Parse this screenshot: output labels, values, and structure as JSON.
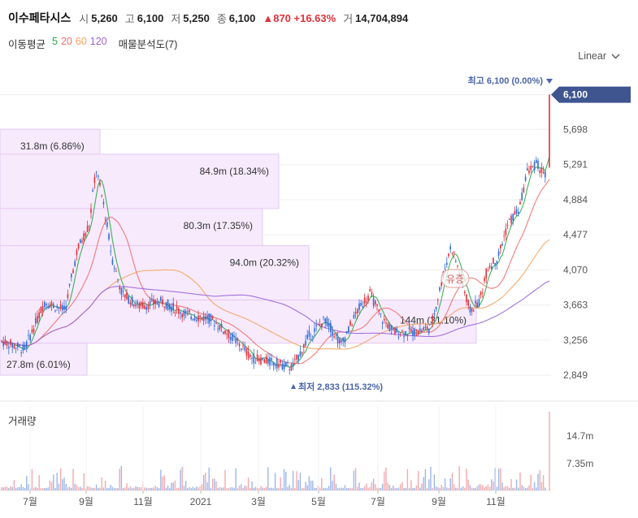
{
  "header": {
    "name": "이수페타시스",
    "open_label": "시",
    "open": "5,260",
    "high_label": "고",
    "high": "6,100",
    "low_label": "저",
    "low": "5,250",
    "close_label": "종",
    "close": "6,100",
    "change": "▲870 +16.63%",
    "volume_label": "거",
    "volume": "14,704,894"
  },
  "legend": {
    "title": "이동평균",
    "ma5": "5",
    "ma20": "20",
    "ma60": "60",
    "ma120": "120",
    "volume_profile": "매물분석도(7)"
  },
  "scale_button": "Linear",
  "volume_title": "거래량",
  "colors": {
    "up": "#e0313a",
    "down": "#2f6bd9",
    "ma5": "#2ba84a",
    "ma20": "#ef6f6c",
    "ma60": "#f5a25b",
    "ma120": "#9a63d8",
    "price_tag": "#3f5590",
    "vp_fill": "#f6eafc",
    "vp_stroke": "#e6c9f2"
  },
  "chart_data": {
    "type": "candlestick",
    "y_ticks": [
      "6,100",
      "5,698",
      "5,291",
      "4,884",
      "4,477",
      "4,070",
      "3,663",
      "3,256",
      "2,849"
    ],
    "x_ticks": [
      "7월",
      "9월",
      "11월",
      "2021",
      "3월",
      "5월",
      "7월",
      "9월",
      "11월"
    ],
    "ylim": [
      2700,
      6350
    ],
    "current_price": "6,100",
    "high_annotation": "최고 6,100 (0.00%)",
    "low_annotation": "최저 2,833 (115.32%)",
    "extra_label": "유증",
    "volume_ticks": [
      "14.7m",
      "7.35m"
    ],
    "volume_profile": [
      {
        "label": "31.8m (6.86%)",
        "price_low": 5410,
        "price_high": 5700
      },
      {
        "label": "84.9m (18.34%)",
        "price_low": 4780,
        "price_high": 5410
      },
      {
        "label": "80.3m (17.35%)",
        "price_low": 4350,
        "price_high": 4780
      },
      {
        "label": "94.0m (20.32%)",
        "price_low": 3720,
        "price_high": 4350
      },
      {
        "label": "144m (31.10%)",
        "price_low": 3220,
        "price_high": 3720
      },
      {
        "label": "27.8m (6.01%)",
        "price_low": 2850,
        "price_high": 3220
      }
    ]
  }
}
